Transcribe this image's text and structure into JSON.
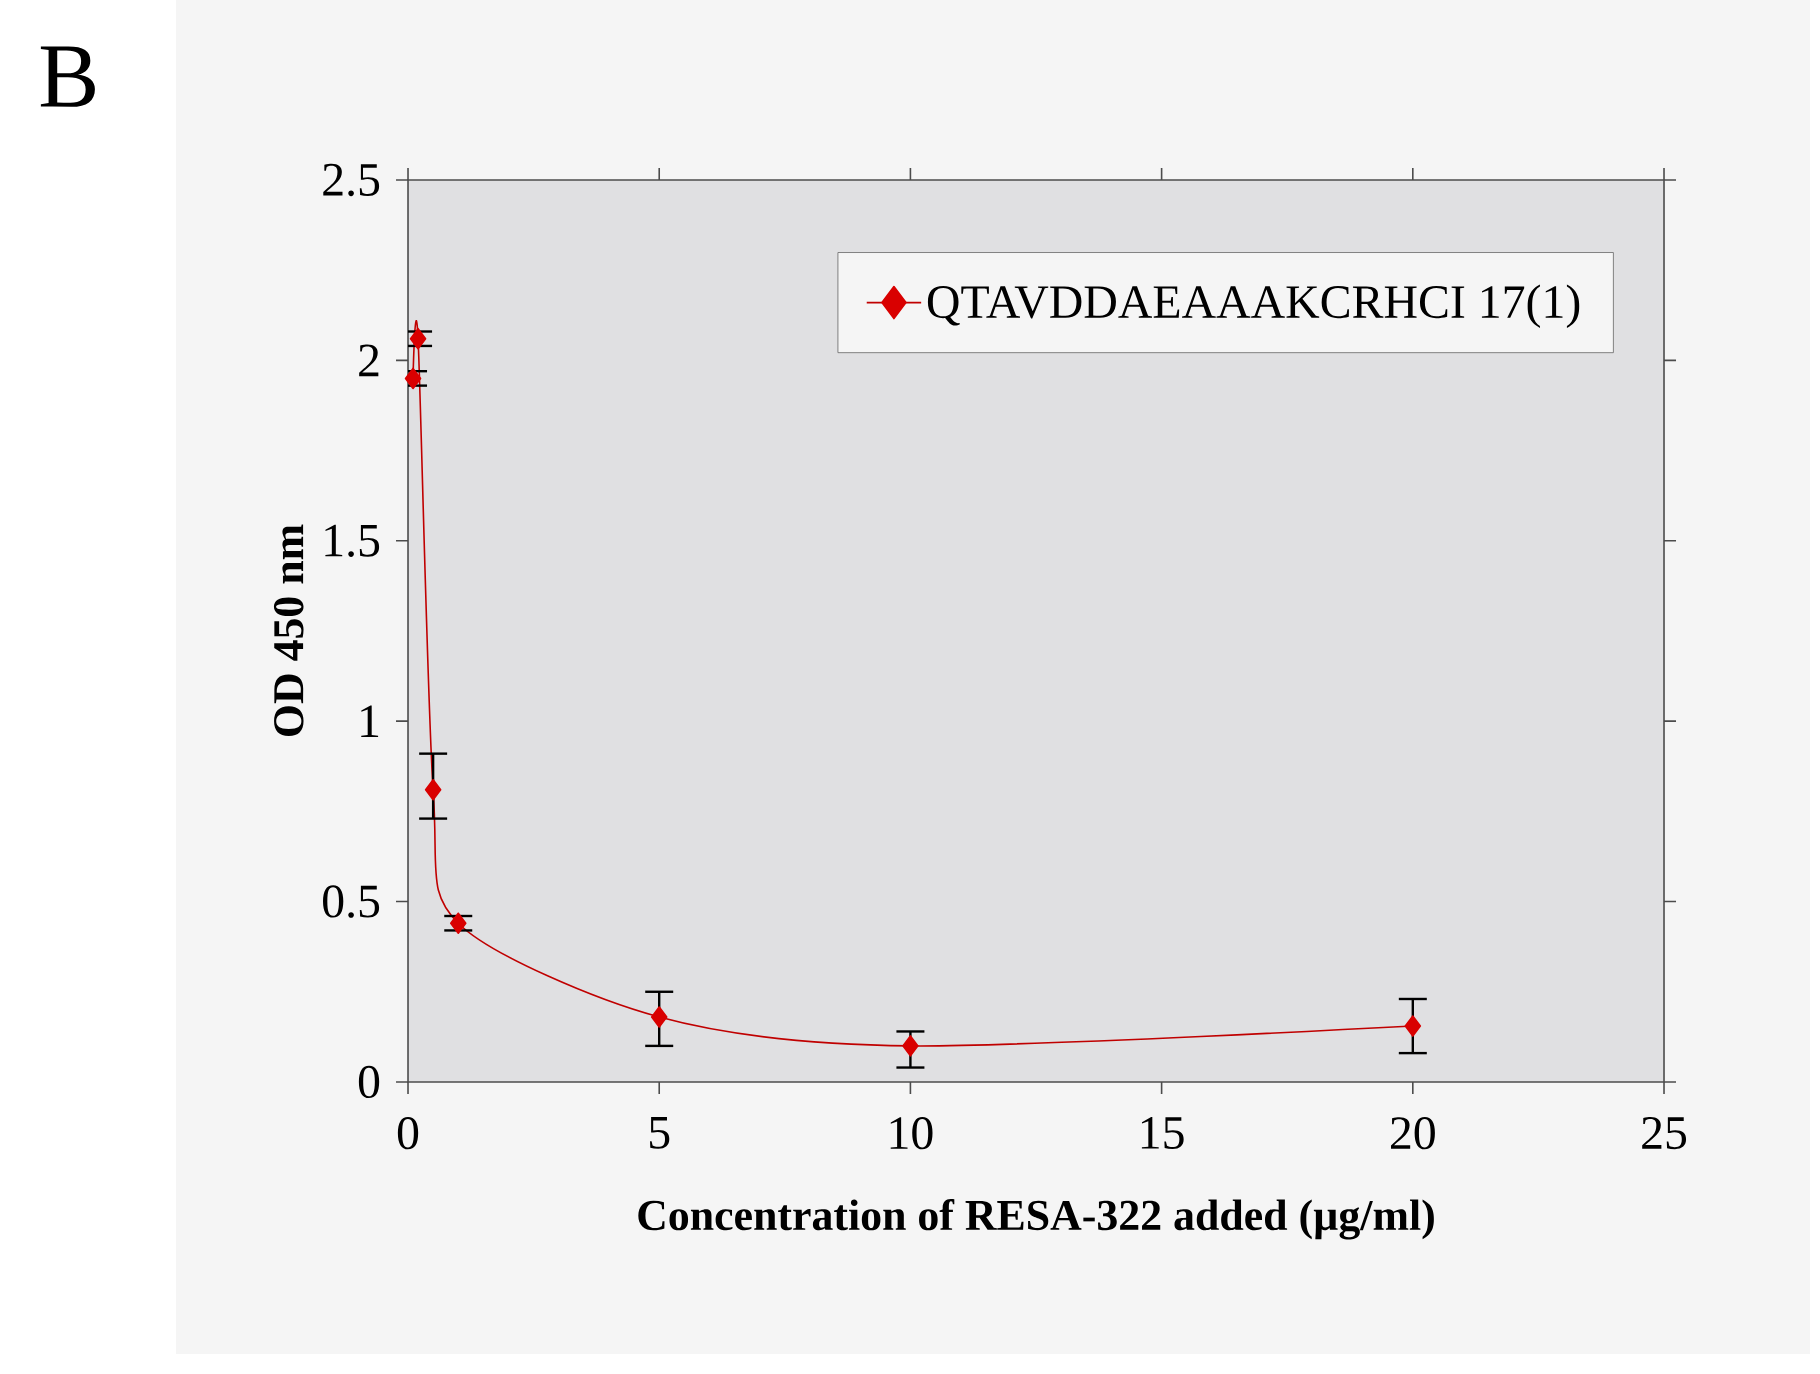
{
  "chart_data": {
    "type": "line",
    "title": "B",
    "xlabel": "Concentration of RESA-322 added (µg/ml)",
    "ylabel": "OD 450 nm",
    "series": [
      {
        "name": "QTAVDDAEAAAKCRHCI 17(1)",
        "color": "#c00000",
        "x": [
          0.1,
          0.2,
          0.5,
          1,
          5,
          10,
          20
        ],
        "values": [
          1.95,
          2.06,
          0.81,
          0.44,
          0.18,
          0.1,
          0.155
        ],
        "errors": [
          0.02,
          0.02,
          [
            0.73,
            0.91
          ],
          0.02,
          [
            0.1,
            0.25
          ],
          [
            0.04,
            0.14
          ],
          [
            0.08,
            0.23
          ]
        ]
      }
    ],
    "xlim": [
      0,
      25
    ],
    "xticks": [
      0,
      5,
      10,
      15,
      20,
      25
    ],
    "ylim": [
      0,
      2.5
    ],
    "yticks": [
      0,
      0.5,
      1,
      1.5,
      2,
      2.5
    ],
    "grid": false,
    "legend": "top right",
    "marker": "diamond",
    "line_style": "solid"
  }
}
